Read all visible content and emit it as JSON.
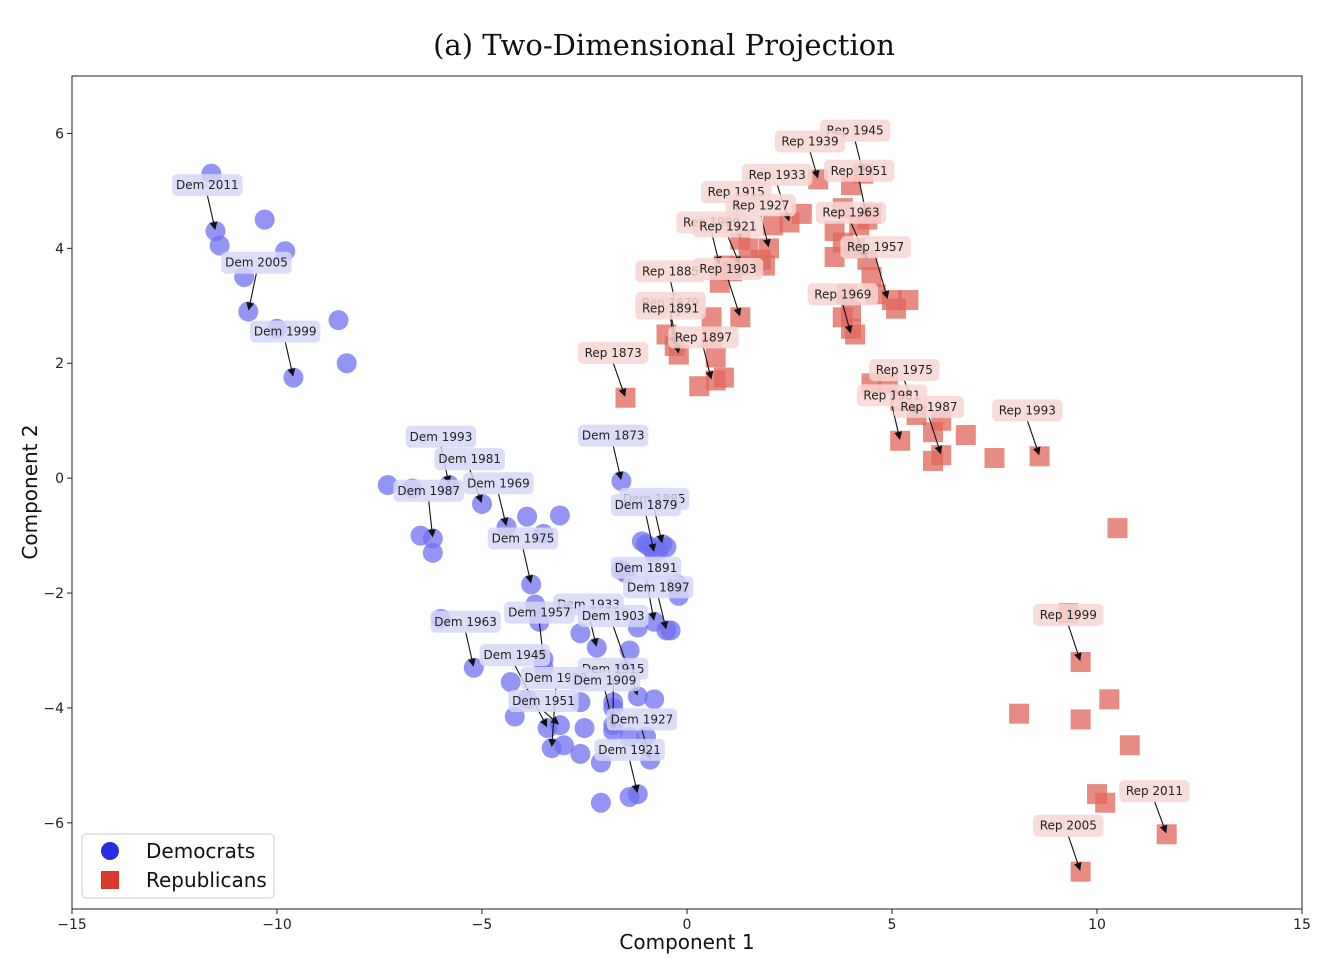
{
  "title": "(a) Two-Dimensional Projection",
  "colors": {
    "dem_marker": "#6f70f0",
    "dem_legend": "#2b2ee0",
    "rep_marker": "#e0665a",
    "rep_legend": "#d93a2b",
    "dem_label_bg": "#d6d7f6",
    "rep_label_bg": "#f6d6d2"
  },
  "legend": {
    "placement": "bottom-left",
    "items": [
      {
        "label": "Democrats",
        "marker": "circle",
        "series": "dem"
      },
      {
        "label": "Republicans",
        "marker": "square",
        "series": "rep"
      }
    ]
  },
  "chart_data": {
    "type": "scatter",
    "title": "(a) Two-Dimensional Projection",
    "xlabel": "Component 1",
    "ylabel": "Component 2",
    "xlim": [
      -15,
      15
    ],
    "ylim": [
      -7.5,
      7
    ],
    "xticks": [
      -15,
      -10,
      -5,
      0,
      5,
      10,
      15
    ],
    "yticks": [
      -6,
      -4,
      -2,
      0,
      2,
      4,
      6
    ],
    "grid": false,
    "series": [
      {
        "name": "Democrats",
        "marker": "circle",
        "points": [
          [
            -11.6,
            5.3
          ],
          [
            -11.5,
            4.3
          ],
          [
            -11.4,
            4.05
          ],
          [
            -10.3,
            4.5
          ],
          [
            -9.8,
            3.95
          ],
          [
            -10.8,
            3.5
          ],
          [
            -10.7,
            2.9
          ],
          [
            -10.0,
            2.6
          ],
          [
            -9.6,
            1.75
          ],
          [
            -8.5,
            2.75
          ],
          [
            -8.3,
            2.0
          ],
          [
            -7.3,
            -0.12
          ],
          [
            -6.7,
            -0.18
          ],
          [
            -5.8,
            -0.12
          ],
          [
            -5.0,
            -0.45
          ],
          [
            -4.4,
            -0.85
          ],
          [
            -3.9,
            -0.67
          ],
          [
            -3.5,
            -0.97
          ],
          [
            -3.1,
            -0.65
          ],
          [
            -6.5,
            -1.0
          ],
          [
            -6.2,
            -1.05
          ],
          [
            -6.2,
            -1.3
          ],
          [
            -6.0,
            -2.45
          ],
          [
            -5.2,
            -3.3
          ],
          [
            -4.3,
            -3.55
          ],
          [
            -4.2,
            -4.15
          ],
          [
            -3.9,
            -3.85
          ],
          [
            -3.7,
            -2.2
          ],
          [
            -3.8,
            -1.85
          ],
          [
            -3.6,
            -2.5
          ],
          [
            -3.5,
            -3.3
          ],
          [
            -3.5,
            -3.15
          ],
          [
            -3.4,
            -4.35
          ],
          [
            -3.3,
            -4.7
          ],
          [
            -3.0,
            -4.65
          ],
          [
            -3.1,
            -4.3
          ],
          [
            -2.6,
            -2.7
          ],
          [
            -2.6,
            -3.9
          ],
          [
            -2.5,
            -4.35
          ],
          [
            -2.6,
            -4.8
          ],
          [
            -1.6,
            -0.05
          ],
          [
            -1.6,
            -1.6
          ],
          [
            -1.5,
            -1.65
          ],
          [
            -2.2,
            -2.95
          ],
          [
            -2.1,
            -4.95
          ],
          [
            -2.1,
            -5.65
          ],
          [
            -1.4,
            -5.55
          ],
          [
            -1.2,
            -5.5
          ],
          [
            -1.5,
            -3.35
          ],
          [
            -1.4,
            -3.0
          ],
          [
            -1.2,
            -2.6
          ],
          [
            -1.2,
            -3.8
          ],
          [
            -1.8,
            -4.3
          ],
          [
            -1.8,
            -4.4
          ],
          [
            -1.8,
            -3.9
          ],
          [
            -1.8,
            -4.0
          ],
          [
            -1.4,
            -4.5
          ],
          [
            -1.0,
            -4.5
          ],
          [
            -0.9,
            -4.9
          ],
          [
            -0.8,
            -3.85
          ],
          [
            -0.8,
            -2.5
          ],
          [
            -0.5,
            -2.65
          ],
          [
            -0.4,
            -2.65
          ],
          [
            -0.2,
            -2.05
          ],
          [
            -0.25,
            -1.85
          ],
          [
            -1.1,
            -1.1
          ],
          [
            -1.0,
            -1.15
          ],
          [
            -0.9,
            -1.2
          ],
          [
            -0.8,
            -1.3
          ],
          [
            -0.7,
            -1.25
          ],
          [
            -0.5,
            -1.2
          ],
          [
            -0.6,
            -1.15
          ]
        ]
      },
      {
        "name": "Republicans",
        "marker": "square",
        "points": [
          [
            -1.5,
            1.4
          ],
          [
            -0.5,
            2.5
          ],
          [
            -0.3,
            2.3
          ],
          [
            -0.2,
            2.15
          ],
          [
            0.3,
            1.6
          ],
          [
            0.7,
            1.7
          ],
          [
            0.9,
            1.75
          ],
          [
            0.7,
            2.1
          ],
          [
            0.6,
            2.45
          ],
          [
            0.6,
            2.8
          ],
          [
            0.8,
            3.4
          ],
          [
            0.9,
            3.7
          ],
          [
            1.3,
            2.8
          ],
          [
            1.1,
            3.6
          ],
          [
            1.3,
            3.7
          ],
          [
            1.3,
            4.15
          ],
          [
            1.5,
            4.0
          ],
          [
            1.8,
            3.8
          ],
          [
            1.9,
            3.7
          ],
          [
            2.0,
            4.0
          ],
          [
            2.1,
            4.4
          ],
          [
            2.5,
            4.45
          ],
          [
            2.8,
            4.6
          ],
          [
            3.2,
            5.2
          ],
          [
            3.6,
            4.3
          ],
          [
            3.8,
            4.7
          ],
          [
            4.0,
            5.1
          ],
          [
            4.3,
            5.3
          ],
          [
            4.4,
            4.5
          ],
          [
            4.5,
            4.6
          ],
          [
            4.2,
            4.4
          ],
          [
            3.8,
            4.1
          ],
          [
            4.1,
            4.0
          ],
          [
            3.6,
            3.85
          ],
          [
            4.4,
            3.8
          ],
          [
            4.5,
            3.5
          ],
          [
            4.6,
            3.2
          ],
          [
            5.0,
            3.1
          ],
          [
            5.1,
            2.95
          ],
          [
            5.4,
            3.1
          ],
          [
            3.9,
            3.2
          ],
          [
            4.0,
            2.9
          ],
          [
            4.0,
            2.6
          ],
          [
            4.1,
            2.5
          ],
          [
            3.8,
            2.8
          ],
          [
            4.5,
            1.65
          ],
          [
            4.9,
            1.65
          ],
          [
            5.2,
            1.35
          ],
          [
            5.2,
            0.65
          ],
          [
            5.6,
            1.1
          ],
          [
            6.0,
            0.8
          ],
          [
            6.2,
            1.0
          ],
          [
            6.0,
            0.3
          ],
          [
            6.2,
            0.4
          ],
          [
            6.8,
            0.75
          ],
          [
            7.5,
            0.35
          ],
          [
            8.6,
            0.38
          ],
          [
            10.5,
            -0.87
          ],
          [
            9.3,
            -2.35
          ],
          [
            9.6,
            -3.2
          ],
          [
            8.1,
            -4.1
          ],
          [
            9.6,
            -4.2
          ],
          [
            10.3,
            -3.85
          ],
          [
            10.8,
            -4.65
          ],
          [
            10.0,
            -5.5
          ],
          [
            10.2,
            -5.65
          ],
          [
            11.7,
            -6.2
          ],
          [
            9.6,
            -6.85
          ]
        ]
      }
    ],
    "annotations": [
      {
        "text": "Dem 2011",
        "series": "dem",
        "lx": -11.7,
        "ly": 5.1,
        "px": -11.5,
        "py": 4.3
      },
      {
        "text": "Dem 2005",
        "series": "dem",
        "lx": -10.5,
        "ly": 3.75,
        "px": -10.7,
        "py": 2.9
      },
      {
        "text": "Dem 1999",
        "series": "dem",
        "lx": -9.8,
        "ly": 2.55,
        "px": -9.6,
        "py": 1.75
      },
      {
        "text": "Dem 1993",
        "series": "dem",
        "lx": -6.0,
        "ly": 0.72,
        "px": -5.8,
        "py": -0.12
      },
      {
        "text": "Dem 1981",
        "series": "dem",
        "lx": -5.3,
        "ly": 0.33,
        "px": -5.0,
        "py": -0.45
      },
      {
        "text": "Dem 1987",
        "series": "dem",
        "lx": -6.3,
        "ly": -0.22,
        "px": -6.2,
        "py": -1.05
      },
      {
        "text": "Dem 1969",
        "series": "dem",
        "lx": -4.6,
        "ly": -0.09,
        "px": -4.4,
        "py": -0.85
      },
      {
        "text": "Dem 1975",
        "series": "dem",
        "lx": -4.0,
        "ly": -1.05,
        "px": -3.8,
        "py": -1.85
      },
      {
        "text": "Dem 1873",
        "series": "dem",
        "lx": -1.8,
        "ly": 0.74,
        "px": -1.6,
        "py": -0.05
      },
      {
        "text": "Dem 1885",
        "series": "dem",
        "lx": -0.8,
        "ly": -0.36,
        "px": -0.6,
        "py": -1.15
      },
      {
        "text": "Dem 1879",
        "series": "dem",
        "lx": -1.0,
        "ly": -0.47,
        "px": -0.8,
        "py": -1.3
      },
      {
        "text": "Dem 1891",
        "series": "dem",
        "lx": -1.0,
        "ly": -1.56,
        "px": -0.8,
        "py": -2.5
      },
      {
        "text": "Dem 1897",
        "series": "dem",
        "lx": -0.7,
        "ly": -1.9,
        "px": -0.5,
        "py": -2.65
      },
      {
        "text": "Dem 1933",
        "series": "dem",
        "lx": -2.4,
        "ly": -2.2,
        "px": -2.2,
        "py": -2.95
      },
      {
        "text": "Dem 1957",
        "series": "dem",
        "lx": -3.6,
        "ly": -2.34,
        "px": -3.5,
        "py": -3.15
      },
      {
        "text": "Dem 1903",
        "series": "dem",
        "lx": -1.8,
        "ly": -2.4,
        "px": -1.2,
        "py": -3.8
      },
      {
        "text": "Dem 1963",
        "series": "dem",
        "lx": -5.4,
        "ly": -2.5,
        "px": -5.2,
        "py": -3.3
      },
      {
        "text": "Dem 1945",
        "series": "dem",
        "lx": -4.2,
        "ly": -3.08,
        "px": -3.4,
        "py": -4.35
      },
      {
        "text": "Dem 1915",
        "series": "dem",
        "lx": -1.8,
        "ly": -3.32,
        "px": -1.8,
        "py": -4.4
      },
      {
        "text": "Dem 1939",
        "series": "dem",
        "lx": -3.2,
        "ly": -3.48,
        "px": -3.3,
        "py": -4.7
      },
      {
        "text": "Dem 1909",
        "series": "dem",
        "lx": -2.0,
        "ly": -3.52,
        "px": -1.8,
        "py": -4.3
      },
      {
        "text": "Dem 1951",
        "series": "dem",
        "lx": -3.5,
        "ly": -3.88,
        "px": -3.1,
        "py": -4.3
      },
      {
        "text": "Dem 1927",
        "series": "dem",
        "lx": -1.1,
        "ly": -4.2,
        "px": -0.9,
        "py": -4.9
      },
      {
        "text": "Dem 1921",
        "series": "dem",
        "lx": -1.4,
        "ly": -4.73,
        "px": -1.2,
        "py": -5.5
      },
      {
        "text": "Rep 1945",
        "series": "rep",
        "lx": 4.1,
        "ly": 6.05,
        "px": 4.3,
        "py": 5.3
      },
      {
        "text": "Rep 1939",
        "series": "rep",
        "lx": 3.0,
        "ly": 5.86,
        "px": 3.2,
        "py": 5.2
      },
      {
        "text": "Rep 1951",
        "series": "rep",
        "lx": 4.2,
        "ly": 5.35,
        "px": 4.4,
        "py": 4.5
      },
      {
        "text": "Rep 1933",
        "series": "rep",
        "lx": 2.2,
        "ly": 5.28,
        "px": 2.5,
        "py": 4.45
      },
      {
        "text": "Rep 1915",
        "series": "rep",
        "lx": 1.2,
        "ly": 4.98,
        "px": 1.3,
        "py": 4.15
      },
      {
        "text": "Rep 1927",
        "series": "rep",
        "lx": 1.8,
        "ly": 4.75,
        "px": 2.0,
        "py": 4.0
      },
      {
        "text": "Rep 1963",
        "series": "rep",
        "lx": 4.0,
        "ly": 4.62,
        "px": 4.4,
        "py": 3.8
      },
      {
        "text": "Rep 1909",
        "series": "rep",
        "lx": 0.6,
        "ly": 4.45,
        "px": 0.8,
        "py": 3.7
      },
      {
        "text": "Rep 1921",
        "series": "rep",
        "lx": 1.0,
        "ly": 4.38,
        "px": 1.3,
        "py": 3.7
      },
      {
        "text": "Rep 1957",
        "series": "rep",
        "lx": 4.6,
        "ly": 4.02,
        "px": 4.9,
        "py": 3.1
      },
      {
        "text": "Rep 1885",
        "series": "rep",
        "lx": -0.4,
        "ly": 3.6,
        "px": -0.2,
        "py": 2.8
      },
      {
        "text": "Rep 1903",
        "series": "rep",
        "lx": 1.0,
        "ly": 3.64,
        "px": 1.3,
        "py": 2.8
      },
      {
        "text": "Rep 1969",
        "series": "rep",
        "lx": 3.8,
        "ly": 3.2,
        "px": 4.0,
        "py": 2.5
      },
      {
        "text": "Rep 1879",
        "series": "rep",
        "lx": -0.4,
        "ly": 3.05,
        "px": -0.2,
        "py": 2.15
      },
      {
        "text": "Rep 1891",
        "series": "rep",
        "lx": -0.4,
        "ly": 2.95,
        "px": -0.3,
        "py": 2.3
      },
      {
        "text": "Rep 1897",
        "series": "rep",
        "lx": 0.4,
        "ly": 2.45,
        "px": 0.6,
        "py": 1.7
      },
      {
        "text": "Rep 1873",
        "series": "rep",
        "lx": -1.8,
        "ly": 2.18,
        "px": -1.5,
        "py": 1.4
      },
      {
        "text": "Rep 1975",
        "series": "rep",
        "lx": 5.3,
        "ly": 1.88,
        "px": 5.6,
        "py": 1.1
      },
      {
        "text": "Rep 1981",
        "series": "rep",
        "lx": 5.0,
        "ly": 1.44,
        "px": 5.2,
        "py": 0.65
      },
      {
        "text": "Rep 1987",
        "series": "rep",
        "lx": 5.9,
        "ly": 1.24,
        "px": 6.2,
        "py": 0.4
      },
      {
        "text": "Rep 1993",
        "series": "rep",
        "lx": 8.3,
        "ly": 1.18,
        "px": 8.6,
        "py": 0.38
      },
      {
        "text": "Rep 1999",
        "series": "rep",
        "lx": 9.3,
        "ly": -2.38,
        "px": 9.6,
        "py": -3.2
      },
      {
        "text": "Rep 2011",
        "series": "rep",
        "lx": 11.4,
        "ly": -5.45,
        "px": 11.7,
        "py": -6.2
      },
      {
        "text": "Rep 2005",
        "series": "rep",
        "lx": 9.3,
        "ly": -6.05,
        "px": 9.6,
        "py": -6.85
      }
    ]
  }
}
